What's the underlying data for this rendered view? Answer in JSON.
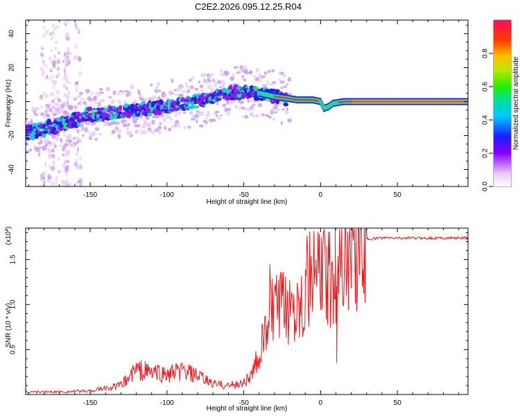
{
  "title": "C2E2.2026.095.12.25.R04",
  "chart_data": [
    {
      "type": "heatmap",
      "title": "C2E2.2026.095.12.25.R04",
      "xlabel": "Height of straight line (km)",
      "ylabel": "Frequency (Hz)",
      "xlim": [
        -192,
        96
      ],
      "ylim": [
        -50,
        48
      ],
      "xticks": [
        -150,
        -100,
        -50,
        0,
        50
      ],
      "yticks": [
        -40,
        -20,
        0,
        20,
        40
      ],
      "colorbar": {
        "label": "Normalized spectral amplitude",
        "range": [
          0,
          1
        ],
        "ticks": [
          "0.0",
          "0.2",
          "0.4",
          "0.6",
          "0.8"
        ],
        "tick_values": [
          0.0,
          0.2,
          0.4,
          0.6,
          0.8
        ]
      },
      "ridge": {
        "description_points": [
          {
            "x": -190,
            "y": -18
          },
          {
            "x": -170,
            "y": -14
          },
          {
            "x": -150,
            "y": -8
          },
          {
            "x": -120,
            "y": -5
          },
          {
            "x": -100,
            "y": -3
          },
          {
            "x": -80,
            "y": 0
          },
          {
            "x": -60,
            "y": 5
          },
          {
            "x": -45,
            "y": 6
          },
          {
            "x": -35,
            "y": 4
          },
          {
            "x": -20,
            "y": 1
          },
          {
            "x": 0,
            "y": 0
          },
          {
            "x": 2,
            "y": -4
          },
          {
            "x": 8,
            "y": -1
          },
          {
            "x": 20,
            "y": 0
          },
          {
            "x": 95,
            "y": 0
          }
        ]
      }
    },
    {
      "type": "line",
      "xlabel": "Height of straight line (km)",
      "ylabel": "SNR (10 * v/v)",
      "y_multiplier": "(x10",
      "y_multiplier_exp": "4",
      "y_multiplier_close": ")",
      "xlim": [
        -192,
        96
      ],
      "ylim": [
        0,
        1.85
      ],
      "xticks": [
        -150,
        -100,
        -50,
        0,
        50
      ],
      "yticks": [
        0.5,
        1.0,
        1.5
      ],
      "ytick_labels": [
        "0.5",
        "1.0",
        "1.5"
      ],
      "series": [
        {
          "name": "SNR",
          "color": "#e8191e",
          "envelope": [
            {
              "x": -192,
              "y": 0.03
            },
            {
              "x": -170,
              "y": 0.03
            },
            {
              "x": -150,
              "y": 0.04
            },
            {
              "x": -130,
              "y": 0.1
            },
            {
              "x": -120,
              "y": 0.28
            },
            {
              "x": -110,
              "y": 0.25
            },
            {
              "x": -100,
              "y": 0.22
            },
            {
              "x": -90,
              "y": 0.26
            },
            {
              "x": -80,
              "y": 0.2
            },
            {
              "x": -70,
              "y": 0.12
            },
            {
              "x": -60,
              "y": 0.1
            },
            {
              "x": -52,
              "y": 0.12
            },
            {
              "x": -45,
              "y": 0.2
            },
            {
              "x": -38,
              "y": 0.55
            },
            {
              "x": -32,
              "y": 0.95
            },
            {
              "x": -25,
              "y": 0.95
            },
            {
              "x": -15,
              "y": 1.05
            },
            {
              "x": -8,
              "y": 1.25
            },
            {
              "x": 0,
              "y": 1.35
            },
            {
              "x": 5,
              "y": 1.25
            },
            {
              "x": 9,
              "y": 1.3
            },
            {
              "x": 12,
              "y": 1.55
            },
            {
              "x": 20,
              "y": 1.62
            },
            {
              "x": 28,
              "y": 1.72
            },
            {
              "x": 38,
              "y": 1.74
            },
            {
              "x": 60,
              "y": 1.74
            },
            {
              "x": 96,
              "y": 1.74
            }
          ],
          "spikes": [
            {
              "x": -33,
              "y": 1.45
            },
            {
              "x": 9.5,
              "y": 1.85
            },
            {
              "x": 10.5,
              "y": 0.35
            },
            {
              "x": 4,
              "y": 1.65
            },
            {
              "x": -3,
              "y": 1.5
            }
          ]
        }
      ]
    }
  ]
}
